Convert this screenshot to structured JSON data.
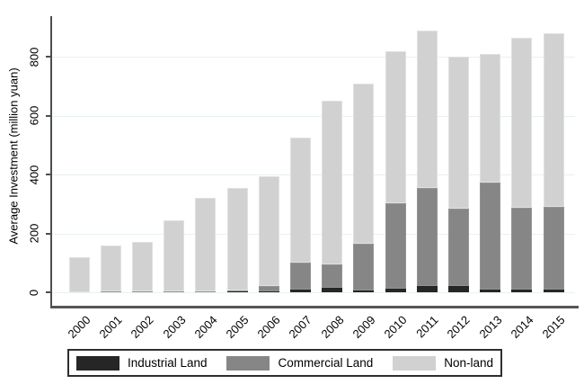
{
  "chart_data": {
    "type": "bar",
    "stacked": true,
    "title": "",
    "xlabel": "",
    "ylabel": "Average Investment (million yuan)",
    "categories": [
      "2000",
      "2001",
      "2002",
      "2003",
      "2004",
      "2005",
      "2006",
      "2007",
      "2008",
      "2009",
      "2010",
      "2011",
      "2012",
      "2013",
      "2014",
      "2015"
    ],
    "series": [
      {
        "name": "Industrial Land",
        "color": "#262626",
        "values": [
          0,
          0,
          0,
          0,
          0,
          2,
          3,
          8,
          15,
          6,
          12,
          22,
          20,
          10,
          8,
          10
        ]
      },
      {
        "name": "Commercial Land",
        "color": "#868686",
        "values": [
          0,
          4,
          4,
          3,
          4,
          5,
          18,
          92,
          80,
          160,
          290,
          333,
          265,
          362,
          280,
          282
        ]
      },
      {
        "name": "Non-land",
        "color": "#d1d1d1",
        "values": [
          120,
          154,
          168,
          242,
          316,
          348,
          374,
          425,
          555,
          544,
          518,
          535,
          515,
          438,
          577,
          588
        ]
      }
    ],
    "totals": [
      120,
      158,
      172,
      245,
      320,
      355,
      395,
      525,
      650,
      710,
      820,
      890,
      800,
      810,
      865,
      880
    ],
    "yticks": [
      0,
      200,
      400,
      600,
      800
    ],
    "ylim": [
      0,
      935
    ],
    "grid": true,
    "gridline_color": "#e7f1f1",
    "axis_color": "#4d4d4d",
    "background_color": "#ffffff",
    "legend_position": "bottom"
  }
}
